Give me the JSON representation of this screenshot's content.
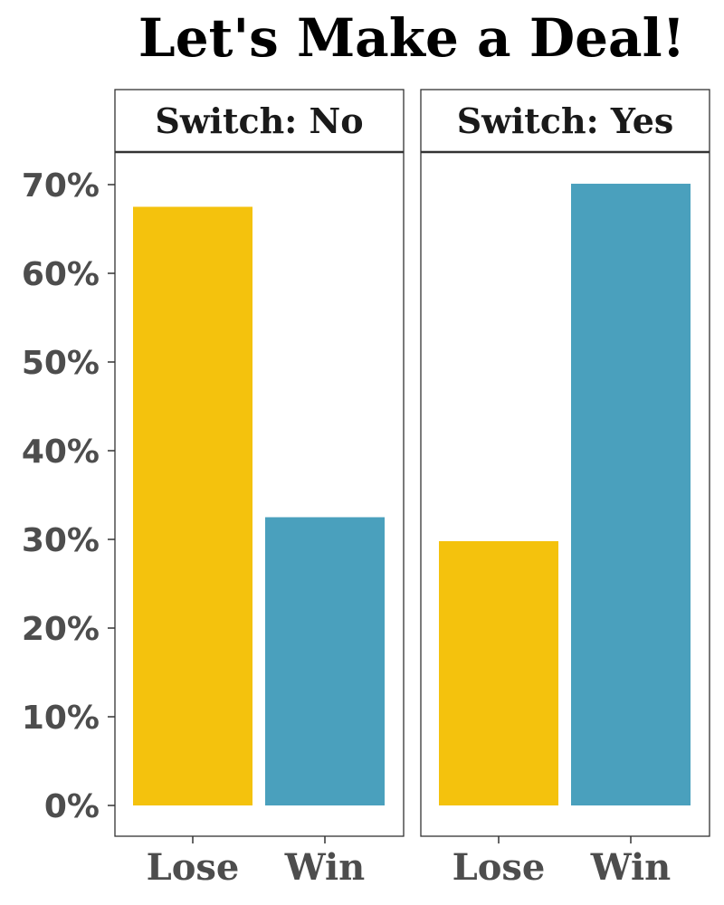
{
  "chart_data": {
    "type": "bar",
    "title": "Let's Make a Deal!",
    "categories": [
      "Lose",
      "Win"
    ],
    "ylim": [
      0,
      0.7
    ],
    "yticks": [
      0,
      0.1,
      0.2,
      0.3,
      0.4,
      0.5,
      0.6,
      0.7
    ],
    "ytick_labels": [
      "0%",
      "10%",
      "20%",
      "30%",
      "40%",
      "50%",
      "60%",
      "70%"
    ],
    "grid": false,
    "legend": "none",
    "panels": [
      {
        "label": "Switch: No",
        "values": [
          0.675,
          0.325
        ]
      },
      {
        "label": "Switch: Yes",
        "values": [
          0.298,
          0.701
        ]
      }
    ],
    "colors": {
      "Lose": "#F4C20D",
      "Win": "#4AA0BD"
    }
  }
}
